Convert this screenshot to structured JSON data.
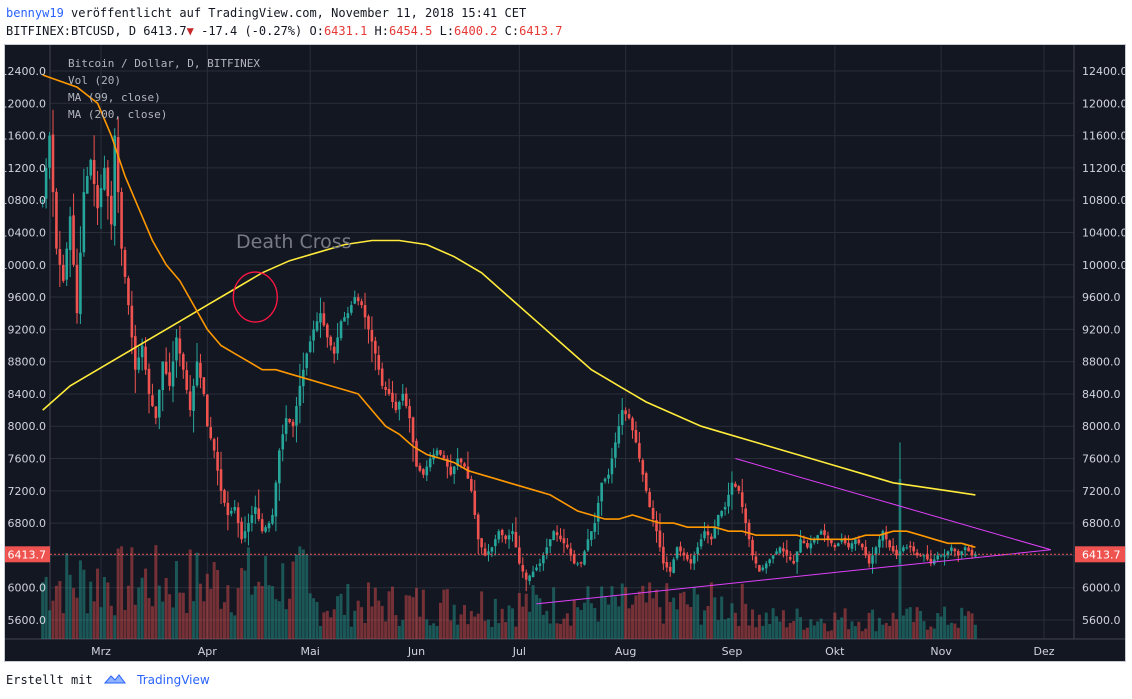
{
  "header": {
    "author": "bennyw19",
    "published_text": "veröffentlicht auf TradingView.com, November 11, 2018 15:41 CET"
  },
  "quote": {
    "symbol": "BITFINEX:BTCUSD, D",
    "last": "6413.7",
    "arrow": "▼",
    "change": "-17.4 (-0.27%)",
    "o_label": "O:",
    "o": "6431.1",
    "h_label": "H:",
    "h": "6454.5",
    "l_label": "L:",
    "l": "6400.2",
    "c_label": "C:",
    "c": "6413.7"
  },
  "footer": {
    "created_with": "Erstellt mit",
    "brand": "TradingView"
  },
  "chart_data": {
    "type": "line",
    "legend": [
      "Bitcoin / Dollar, D, BITFINEX",
      "Vol (20)",
      "MA (99, close)",
      "MA (200, close)"
    ],
    "annotation": "Death Cross",
    "last_price_label": "6413.7",
    "ylim": [
      5400,
      12600
    ],
    "y_ticks": [
      "12400.0",
      "12000.0",
      "11600.0",
      "11200.0",
      "10800.0",
      "10400.0",
      "10000.0",
      "9600.0",
      "9200.0",
      "8800.0",
      "8400.0",
      "8000.0",
      "7600.0",
      "7200.0",
      "6800.0",
      "6400.0",
      "6000.0",
      "5600.0"
    ],
    "y_tick_values": [
      12400,
      12000,
      11600,
      11200,
      10800,
      10400,
      10000,
      9600,
      9200,
      8800,
      8400,
      8000,
      7600,
      7200,
      6800,
      6400,
      6000,
      5600
    ],
    "x_ticks": [
      "Mrz",
      "Apr",
      "Mai",
      "Jun",
      "Jul",
      "Aug",
      "Sep",
      "Okt",
      "Nov",
      "Dez"
    ],
    "x_tick_days": [
      59,
      90,
      120,
      151,
      181,
      212,
      243,
      273,
      304,
      334
    ],
    "last_price": 6413.7,
    "colors": {
      "bg": "#131722",
      "grid": "#2a2e39",
      "up": "#26a69a",
      "down": "#ef5350",
      "ma99": "#ff9800",
      "ma200": "#ffeb3b",
      "triangle": "#e040fb",
      "circle": "#ff1744",
      "price_line": "#ef5350"
    },
    "price_key_points": [
      [
        42,
        10800
      ],
      [
        44,
        11600
      ],
      [
        46,
        10200
      ],
      [
        48,
        9800
      ],
      [
        50,
        10600
      ],
      [
        52,
        9400
      ],
      [
        54,
        10900
      ],
      [
        56,
        11300
      ],
      [
        58,
        10700
      ],
      [
        60,
        11200
      ],
      [
        62,
        10500
      ],
      [
        63,
        11600
      ],
      [
        65,
        10200
      ],
      [
        67,
        9500
      ],
      [
        69,
        8700
      ],
      [
        71,
        9000
      ],
      [
        73,
        8400
      ],
      [
        75,
        8100
      ],
      [
        77,
        8800
      ],
      [
        79,
        8500
      ],
      [
        81,
        9100
      ],
      [
        83,
        8700
      ],
      [
        85,
        8200
      ],
      [
        87,
        8800
      ],
      [
        89,
        8400
      ],
      [
        90,
        8000
      ],
      [
        92,
        7700
      ],
      [
        94,
        7200
      ],
      [
        96,
        6900
      ],
      [
        98,
        7000
      ],
      [
        100,
        6600
      ],
      [
        102,
        6800
      ],
      [
        104,
        7000
      ],
      [
        106,
        6700
      ],
      [
        108,
        6800
      ],
      [
        109,
        6900
      ],
      [
        111,
        7700
      ],
      [
        113,
        8100
      ],
      [
        115,
        8000
      ],
      [
        117,
        8500
      ],
      [
        119,
        8900
      ],
      [
        121,
        9200
      ],
      [
        123,
        9400
      ],
      [
        125,
        9100
      ],
      [
        127,
        8900
      ],
      [
        129,
        9300
      ],
      [
        131,
        9400
      ],
      [
        133,
        9600
      ],
      [
        135,
        9500
      ],
      [
        137,
        9200
      ],
      [
        139,
        8900
      ],
      [
        141,
        8500
      ],
      [
        143,
        8400
      ],
      [
        145,
        8200
      ],
      [
        147,
        8400
      ],
      [
        149,
        8100
      ],
      [
        151,
        7500
      ],
      [
        153,
        7400
      ],
      [
        155,
        7600
      ],
      [
        157,
        7700
      ],
      [
        159,
        7600
      ],
      [
        161,
        7400
      ],
      [
        163,
        7600
      ],
      [
        165,
        7500
      ],
      [
        167,
        7200
      ],
      [
        169,
        6600
      ],
      [
        171,
        6400
      ],
      [
        173,
        6500
      ],
      [
        175,
        6700
      ],
      [
        177,
        6600
      ],
      [
        179,
        6700
      ],
      [
        181,
        6300
      ],
      [
        183,
        6100
      ],
      [
        185,
        6200
      ],
      [
        187,
        6300
      ],
      [
        189,
        6500
      ],
      [
        191,
        6700
      ],
      [
        193,
        6600
      ],
      [
        195,
        6500
      ],
      [
        197,
        6300
      ],
      [
        199,
        6300
      ],
      [
        201,
        6600
      ],
      [
        203,
        6800
      ],
      [
        205,
        7300
      ],
      [
        207,
        7400
      ],
      [
        209,
        7800
      ],
      [
        211,
        8200
      ],
      [
        213,
        8100
      ],
      [
        215,
        7800
      ],
      [
        217,
        7400
      ],
      [
        219,
        7000
      ],
      [
        221,
        6700
      ],
      [
        223,
        6300
      ],
      [
        225,
        6200
      ],
      [
        227,
        6500
      ],
      [
        229,
        6400
      ],
      [
        231,
        6300
      ],
      [
        233,
        6500
      ],
      [
        235,
        6700
      ],
      [
        237,
        6600
      ],
      [
        239,
        6900
      ],
      [
        241,
        7000
      ],
      [
        243,
        7300
      ],
      [
        245,
        7200
      ],
      [
        247,
        6800
      ],
      [
        249,
        6400
      ],
      [
        251,
        6200
      ],
      [
        253,
        6300
      ],
      [
        255,
        6400
      ],
      [
        257,
        6500
      ],
      [
        259,
        6400
      ],
      [
        261,
        6300
      ],
      [
        263,
        6600
      ],
      [
        265,
        6500
      ],
      [
        267,
        6600
      ],
      [
        269,
        6700
      ],
      [
        271,
        6600
      ],
      [
        273,
        6500
      ],
      [
        275,
        6600
      ],
      [
        277,
        6500
      ],
      [
        279,
        6600
      ],
      [
        281,
        6500
      ],
      [
        283,
        6300
      ],
      [
        285,
        6500
      ],
      [
        287,
        6700
      ],
      [
        289,
        6500
      ],
      [
        291,
        6400
      ],
      [
        293,
        6500
      ],
      [
        295,
        6500
      ],
      [
        297,
        6400
      ],
      [
        299,
        6400
      ],
      [
        301,
        6300
      ],
      [
        303,
        6400
      ],
      [
        305,
        6400
      ],
      [
        307,
        6500
      ],
      [
        309,
        6400
      ],
      [
        311,
        6500
      ],
      [
        313,
        6400
      ],
      [
        314,
        6414
      ]
    ],
    "ma99": [
      [
        42,
        12350
      ],
      [
        52,
        12200
      ],
      [
        58,
        12000
      ],
      [
        62,
        11600
      ],
      [
        66,
        11100
      ],
      [
        70,
        10700
      ],
      [
        74,
        10300
      ],
      [
        78,
        10000
      ],
      [
        82,
        9800
      ],
      [
        86,
        9500
      ],
      [
        90,
        9200
      ],
      [
        94,
        9000
      ],
      [
        98,
        8900
      ],
      [
        102,
        8800
      ],
      [
        106,
        8700
      ],
      [
        110,
        8700
      ],
      [
        114,
        8650
      ],
      [
        118,
        8600
      ],
      [
        122,
        8550
      ],
      [
        126,
        8500
      ],
      [
        130,
        8450
      ],
      [
        134,
        8400
      ],
      [
        138,
        8200
      ],
      [
        142,
        8000
      ],
      [
        146,
        7900
      ],
      [
        150,
        7750
      ],
      [
        154,
        7650
      ],
      [
        158,
        7600
      ],
      [
        162,
        7550
      ],
      [
        166,
        7450
      ],
      [
        170,
        7400
      ],
      [
        174,
        7350
      ],
      [
        178,
        7300
      ],
      [
        182,
        7250
      ],
      [
        186,
        7200
      ],
      [
        190,
        7150
      ],
      [
        194,
        7050
      ],
      [
        198,
        6950
      ],
      [
        202,
        6900
      ],
      [
        206,
        6850
      ],
      [
        210,
        6850
      ],
      [
        214,
        6900
      ],
      [
        218,
        6850
      ],
      [
        222,
        6800
      ],
      [
        226,
        6800
      ],
      [
        230,
        6750
      ],
      [
        234,
        6750
      ],
      [
        238,
        6750
      ],
      [
        242,
        6700
      ],
      [
        246,
        6700
      ],
      [
        250,
        6650
      ],
      [
        254,
        6650
      ],
      [
        258,
        6650
      ],
      [
        262,
        6650
      ],
      [
        266,
        6600
      ],
      [
        270,
        6600
      ],
      [
        274,
        6600
      ],
      [
        278,
        6600
      ],
      [
        282,
        6650
      ],
      [
        286,
        6650
      ],
      [
        290,
        6700
      ],
      [
        294,
        6700
      ],
      [
        298,
        6650
      ],
      [
        302,
        6600
      ],
      [
        306,
        6550
      ],
      [
        310,
        6550
      ],
      [
        314,
        6500
      ]
    ],
    "ma200": [
      [
        42,
        8200
      ],
      [
        50,
        8500
      ],
      [
        58,
        8700
      ],
      [
        66,
        8900
      ],
      [
        74,
        9100
      ],
      [
        82,
        9300
      ],
      [
        90,
        9500
      ],
      [
        98,
        9700
      ],
      [
        106,
        9900
      ],
      [
        114,
        10050
      ],
      [
        122,
        10150
      ],
      [
        130,
        10250
      ],
      [
        138,
        10300
      ],
      [
        146,
        10300
      ],
      [
        154,
        10250
      ],
      [
        162,
        10100
      ],
      [
        170,
        9900
      ],
      [
        178,
        9600
      ],
      [
        186,
        9300
      ],
      [
        194,
        9000
      ],
      [
        202,
        8700
      ],
      [
        210,
        8500
      ],
      [
        218,
        8300
      ],
      [
        226,
        8150
      ],
      [
        234,
        8000
      ],
      [
        242,
        7900
      ],
      [
        250,
        7800
      ],
      [
        258,
        7700
      ],
      [
        266,
        7600
      ],
      [
        274,
        7500
      ],
      [
        282,
        7400
      ],
      [
        290,
        7300
      ],
      [
        298,
        7250
      ],
      [
        306,
        7200
      ],
      [
        314,
        7150
      ]
    ],
    "triangle_lines": [
      [
        [
          244,
          7600
        ],
        [
          336,
          6470
        ]
      ],
      [
        [
          186,
          5800
        ],
        [
          336,
          6470
        ]
      ]
    ],
    "death_cross_circle": [
      104,
      9600
    ]
  }
}
